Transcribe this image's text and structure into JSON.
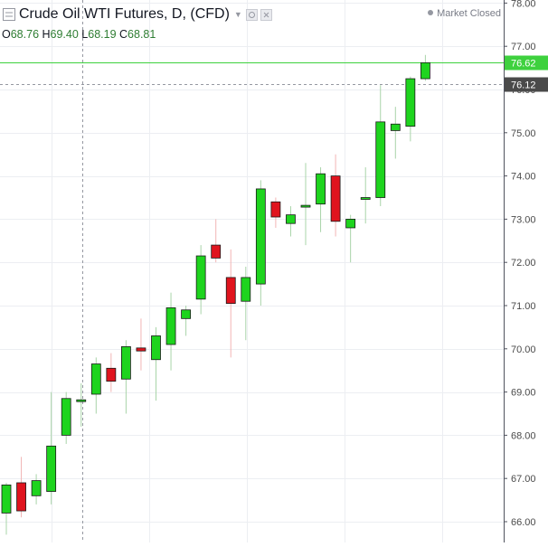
{
  "header": {
    "symbol": "Crude Oil WTI Futures, D, (CFD)",
    "status": "Market Closed",
    "ohlc": [
      {
        "label": "O",
        "value": "68.76"
      },
      {
        "label": "H",
        "value": "69.40"
      },
      {
        "label": "L",
        "value": "68.19"
      },
      {
        "label": "C",
        "value": "68.81"
      }
    ]
  },
  "colors": {
    "up": "#1ed41e",
    "down": "#e0141e",
    "wick_up": "#a9d4a9",
    "wick_down": "#f2b5b5",
    "last_price": "#3ed13e",
    "crosshair_label": "#4a4a4a",
    "grid": "#eceef2"
  },
  "chart_data": {
    "type": "candlestick",
    "ylim": [
      65.8,
      78.2
    ],
    "y_ticks": [
      "66.00",
      "67.00",
      "68.00",
      "69.00",
      "70.00",
      "71.00",
      "72.00",
      "73.00",
      "74.00",
      "75.00",
      "76.00",
      "77.00",
      "78.00"
    ],
    "price_labels": {
      "last_price": "76.62",
      "crosshair_price": "76.12"
    },
    "candles": [
      {
        "o": 66.2,
        "h": 66.9,
        "l": 65.7,
        "c": 66.85
      },
      {
        "o": 66.9,
        "h": 67.5,
        "l": 66.1,
        "c": 66.25
      },
      {
        "o": 66.6,
        "h": 67.1,
        "l": 66.4,
        "c": 66.95
      },
      {
        "o": 66.7,
        "h": 69.0,
        "l": 66.4,
        "c": 67.75
      },
      {
        "o": 68.0,
        "h": 69.0,
        "l": 67.8,
        "c": 68.85
      },
      {
        "o": 68.78,
        "h": 69.2,
        "l": 68.2,
        "c": 68.82
      },
      {
        "o": 68.95,
        "h": 69.8,
        "l": 68.5,
        "c": 69.65
      },
      {
        "o": 69.55,
        "h": 69.9,
        "l": 69.0,
        "c": 69.25
      },
      {
        "o": 69.3,
        "h": 70.2,
        "l": 68.5,
        "c": 70.05
      },
      {
        "o": 70.02,
        "h": 70.7,
        "l": 69.5,
        "c": 69.95
      },
      {
        "o": 69.75,
        "h": 70.5,
        "l": 68.8,
        "c": 70.3
      },
      {
        "o": 70.1,
        "h": 71.3,
        "l": 69.5,
        "c": 70.95
      },
      {
        "o": 70.7,
        "h": 71.0,
        "l": 70.3,
        "c": 70.9
      },
      {
        "o": 71.15,
        "h": 72.4,
        "l": 70.8,
        "c": 72.15
      },
      {
        "o": 72.4,
        "h": 73.0,
        "l": 72.0,
        "c": 72.1
      },
      {
        "o": 71.65,
        "h": 72.3,
        "l": 69.8,
        "c": 71.05
      },
      {
        "o": 71.1,
        "h": 71.9,
        "l": 70.2,
        "c": 71.65
      },
      {
        "o": 71.5,
        "h": 73.9,
        "l": 71.0,
        "c": 73.7
      },
      {
        "o": 73.4,
        "h": 73.5,
        "l": 72.8,
        "c": 73.05
      },
      {
        "o": 72.9,
        "h": 73.3,
        "l": 72.6,
        "c": 73.1
      },
      {
        "o": 73.3,
        "h": 74.3,
        "l": 72.4,
        "c": 73.32
      },
      {
        "o": 73.35,
        "h": 74.2,
        "l": 72.7,
        "c": 74.05
      },
      {
        "o": 74.0,
        "h": 74.5,
        "l": 72.6,
        "c": 72.95
      },
      {
        "o": 72.8,
        "h": 73.1,
        "l": 72.0,
        "c": 73.0
      },
      {
        "o": 73.47,
        "h": 74.2,
        "l": 72.9,
        "c": 73.5
      },
      {
        "o": 73.5,
        "h": 76.1,
        "l": 73.3,
        "c": 75.25
      },
      {
        "o": 75.05,
        "h": 75.6,
        "l": 74.4,
        "c": 75.2
      },
      {
        "o": 75.15,
        "h": 76.3,
        "l": 74.8,
        "c": 76.25
      },
      {
        "o": 76.25,
        "h": 76.8,
        "l": 76.2,
        "c": 76.62
      }
    ]
  }
}
